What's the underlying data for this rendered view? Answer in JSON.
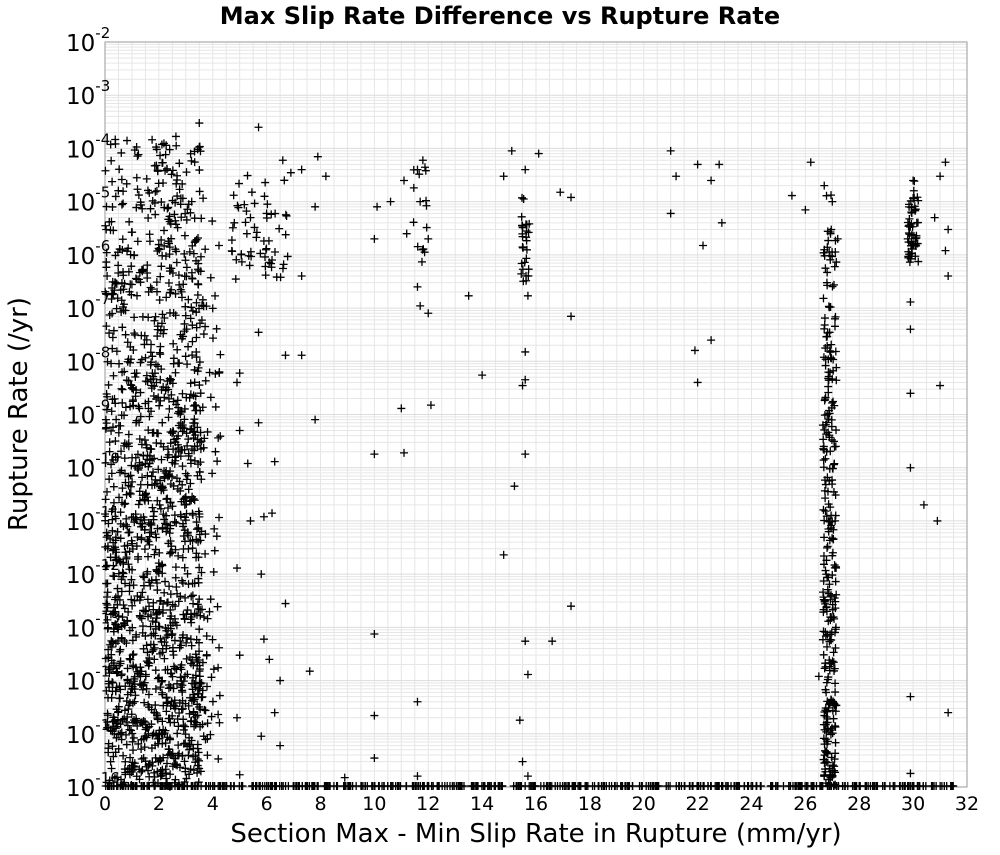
{
  "chart_data": {
    "type": "scatter",
    "title": "Max Slip Rate Difference vs Rupture Rate",
    "xlabel": "Section Max - Min Slip Rate in Rupture (mm/yr)",
    "ylabel": "Rupture Rate (/yr)",
    "xlim": [
      0,
      32
    ],
    "ylim": [
      1e-16,
      0.01
    ],
    "y_scale": "log",
    "x_ticks": [
      0,
      2,
      4,
      6,
      8,
      10,
      12,
      14,
      16,
      18,
      20,
      22,
      24,
      26,
      28,
      30,
      32
    ],
    "y_tick_exponents": [
      -16,
      -15,
      -14,
      -13,
      -12,
      -11,
      -10,
      -9,
      -8,
      -7,
      -6,
      -5,
      -4,
      -3,
      -2
    ],
    "y_tick_base": "10",
    "grid": true,
    "marker": "+",
    "marker_color": "#000000",
    "series": [
      {
        "points": [
          [
            3.5,
            0.0003
          ],
          [
            5.7,
            0.00025
          ],
          [
            15.1,
            9e-05
          ],
          [
            16.1,
            8e-05
          ],
          [
            21.0,
            9e-05
          ],
          [
            7.9,
            7e-05
          ],
          [
            11.8,
            6e-05
          ],
          [
            6.6,
            6e-05
          ],
          [
            22.0,
            5e-05
          ],
          [
            22.8,
            5e-05
          ],
          [
            26.2,
            5.5e-05
          ],
          [
            31.2,
            5.5e-05
          ],
          [
            7.3,
            4e-05
          ],
          [
            6.9,
            3.5e-05
          ],
          [
            8.2,
            3e-05
          ],
          [
            11.6,
            4e-05
          ],
          [
            15.6,
            4e-05
          ],
          [
            14.8,
            3e-05
          ],
          [
            21.2,
            3e-05
          ],
          [
            22.5,
            2.5e-05
          ],
          [
            30.0,
            2.5e-05
          ],
          [
            31.0,
            3e-05
          ],
          [
            26.7,
            2e-05
          ],
          [
            11.1,
            2.5e-05
          ],
          [
            16.9,
            1.5e-05
          ],
          [
            17.3,
            1.2e-05
          ],
          [
            25.5,
            1.3e-05
          ],
          [
            27.0,
            1e-05
          ],
          [
            10.1,
            8e-06
          ],
          [
            10.6,
            1e-05
          ],
          [
            7.8,
            8e-06
          ],
          [
            11.7,
            1e-05
          ],
          [
            21.0,
            6e-06
          ],
          [
            22.9,
            4e-06
          ],
          [
            26.0,
            7e-06
          ],
          [
            30.8,
            5e-06
          ],
          [
            6.0,
            6e-06
          ],
          [
            5.4,
            5e-06
          ],
          [
            4.8,
            4e-06
          ],
          [
            10.0,
            2e-06
          ],
          [
            11.2,
            2.5e-06
          ],
          [
            12.0,
            2e-06
          ],
          [
            22.2,
            1.5e-06
          ],
          [
            27.2,
            2e-06
          ],
          [
            29.8,
            2e-06
          ],
          [
            31.3,
            3e-06
          ],
          [
            31.2,
            1.2e-06
          ],
          [
            6.2,
            8e-07
          ],
          [
            7.3,
            4e-07
          ],
          [
            11.6,
            2.5e-07
          ],
          [
            13.5,
            1.7e-07
          ],
          [
            15.7,
            1.7e-07
          ],
          [
            11.7,
            1.1e-07
          ],
          [
            12.0,
            8e-08
          ],
          [
            17.3,
            7e-08
          ],
          [
            29.9,
            1.3e-07
          ],
          [
            31.3,
            4e-07
          ],
          [
            26.8,
            3e-07
          ],
          [
            5.7,
            3.5e-08
          ],
          [
            6.7,
            1.3e-08
          ],
          [
            7.3,
            1.3e-08
          ],
          [
            15.6,
            1.5e-08
          ],
          [
            21.9,
            1.6e-08
          ],
          [
            22.5,
            2.5e-08
          ],
          [
            29.9,
            4e-08
          ],
          [
            26.9,
            3.5e-08
          ],
          [
            5.0,
            6e-09
          ],
          [
            4.9,
            4e-09
          ],
          [
            14.0,
            5.5e-09
          ],
          [
            15.6,
            4.5e-09
          ],
          [
            15.5,
            3.5e-09
          ],
          [
            22.0,
            4e-09
          ],
          [
            31.0,
            3.5e-09
          ],
          [
            29.9,
            2.5e-09
          ],
          [
            7.8,
            8e-10
          ],
          [
            11.0,
            1.3e-09
          ],
          [
            12.1,
            1.5e-09
          ],
          [
            5.0,
            5e-10
          ],
          [
            5.7,
            7e-10
          ],
          [
            10.0,
            1.8e-10
          ],
          [
            11.1,
            1.9e-10
          ],
          [
            15.6,
            1.8e-10
          ],
          [
            4.1,
            2e-10
          ],
          [
            5.3,
            1.2e-10
          ],
          [
            6.3,
            1.3e-10
          ],
          [
            15.2,
            4.5e-11
          ],
          [
            30.4,
            2e-11
          ],
          [
            30.9,
            1e-11
          ],
          [
            29.9,
            1e-10
          ],
          [
            5.9,
            1.2e-11
          ],
          [
            6.2,
            1.4e-11
          ],
          [
            5.4,
            1e-11
          ],
          [
            14.8,
            2.3e-12
          ],
          [
            4.9,
            1.3e-12
          ],
          [
            5.8,
            1e-12
          ],
          [
            6.7,
            2.8e-13
          ],
          [
            17.3,
            2.5e-13
          ],
          [
            10.0,
            7.5e-14
          ],
          [
            15.6,
            5.5e-14
          ],
          [
            16.6,
            5.5e-14
          ],
          [
            5.0,
            3e-14
          ],
          [
            5.9,
            6e-14
          ],
          [
            6.1,
            2.5e-14
          ],
          [
            7.6,
            1.5e-14
          ],
          [
            15.7,
            1.3e-14
          ],
          [
            6.5,
            1e-14
          ],
          [
            11.6,
            4e-15
          ],
          [
            10.0,
            2.2e-15
          ],
          [
            15.4,
            1.8e-15
          ],
          [
            4.9,
            2e-15
          ],
          [
            6.3,
            2.5e-15
          ],
          [
            31.3,
            2.5e-15
          ],
          [
            29.9,
            5e-15
          ],
          [
            5.8,
            9e-16
          ],
          [
            6.5,
            6e-16
          ],
          [
            10.0,
            3.5e-16
          ],
          [
            15.5,
            3e-16
          ],
          [
            8.9,
            1.5e-16
          ],
          [
            11.6,
            1.6e-16
          ],
          [
            15.7,
            1.6e-16
          ],
          [
            5.0,
            1.7e-16
          ],
          [
            29.9,
            1.8e-16
          ],
          [
            26.5,
            1.2e-14
          ],
          [
            26.8,
            2e-13
          ]
        ],
        "clusters": [
          {
            "x_range": [
              0.0,
              3.6
            ],
            "exp_range": [
              -16,
              -3.7
            ],
            "count": 1500
          },
          {
            "x_range": [
              3.6,
              4.3
            ],
            "exp_range": [
              -15.5,
              -4.3
            ],
            "count": 70
          },
          {
            "x_range": [
              26.65,
              27.15
            ],
            "exp_range": [
              -16,
              -4.6
            ],
            "count": 300
          },
          {
            "x_range": [
              29.8,
              30.2
            ],
            "exp_range": [
              -6.2,
              -4.6
            ],
            "count": 55
          },
          {
            "x_range": [
              15.45,
              15.75
            ],
            "exp_range": [
              -6.5,
              -4.9
            ],
            "count": 28
          },
          {
            "x_range": [
              11.45,
              11.95
            ],
            "exp_range": [
              -6.2,
              -4.2
            ],
            "count": 14
          },
          {
            "x_range": [
              4.7,
              6.8
            ],
            "exp_range": [
              -6.5,
              -4.3
            ],
            "count": 55
          }
        ],
        "floor_band": {
          "x_range": [
            0.0,
            31.5
          ],
          "value": 1e-16,
          "count": 550
        }
      }
    ]
  }
}
